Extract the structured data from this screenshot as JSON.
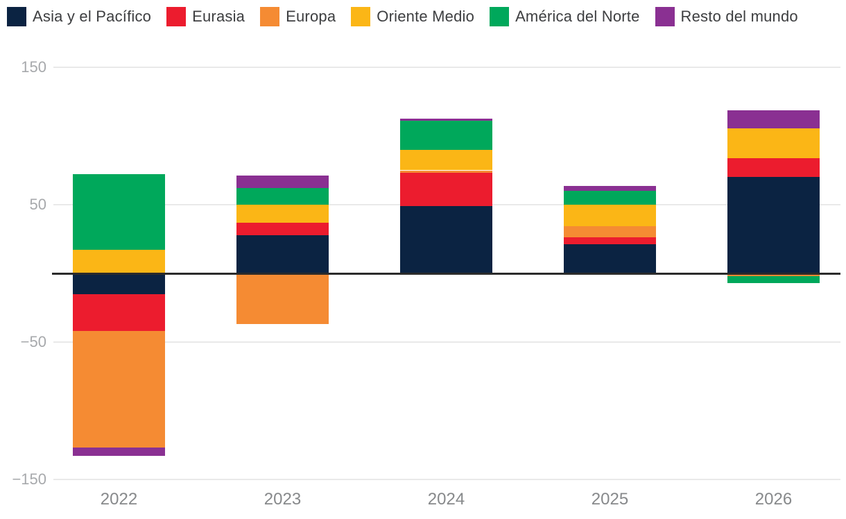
{
  "chart_data": {
    "type": "bar",
    "stacked": true,
    "title": "",
    "xlabel": "",
    "ylabel": "",
    "categories": [
      "2022",
      "2023",
      "2024",
      "2025",
      "2026"
    ],
    "series": [
      {
        "name": "Asia y el Pacífico",
        "color": "#0b2342",
        "values": [
          -15,
          28,
          49,
          21,
          70
        ]
      },
      {
        "name": "Eurasia",
        "color": "#ec1c2e",
        "values": [
          -27,
          9,
          24,
          5.5,
          14
        ]
      },
      {
        "name": "Europa",
        "color": "#f58b33",
        "values": [
          -85,
          -37,
          2,
          8,
          -2
        ]
      },
      {
        "name": "Oriente Medio",
        "color": "#fbb616",
        "values": [
          17,
          13,
          15,
          15.5,
          21.5
        ]
      },
      {
        "name": "América del Norte",
        "color": "#00a85b",
        "values": [
          55,
          12,
          21,
          10,
          -5
        ]
      },
      {
        "name": "Resto del mundo",
        "color": "#8a3092",
        "values": [
          -6,
          9,
          1.5,
          3.5,
          13
        ]
      }
    ],
    "yticks": [
      {
        "value": 150,
        "label": "150"
      },
      {
        "value": 50,
        "label": "50"
      },
      {
        "value": -50,
        "label": "−50"
      },
      {
        "value": -150,
        "label": "−150"
      }
    ],
    "ylim": [
      -150,
      150
    ],
    "grid": "horizontal",
    "legend_position": "top",
    "zero_line": true
  },
  "layout_colors": {
    "gridline": "#e9e9e9",
    "zero_line": "#2b2b2b",
    "ytick_text": "#a7a9ac",
    "xtick_text": "#87898b",
    "legend_text": "#3d3e40",
    "background": "#ffffff"
  }
}
